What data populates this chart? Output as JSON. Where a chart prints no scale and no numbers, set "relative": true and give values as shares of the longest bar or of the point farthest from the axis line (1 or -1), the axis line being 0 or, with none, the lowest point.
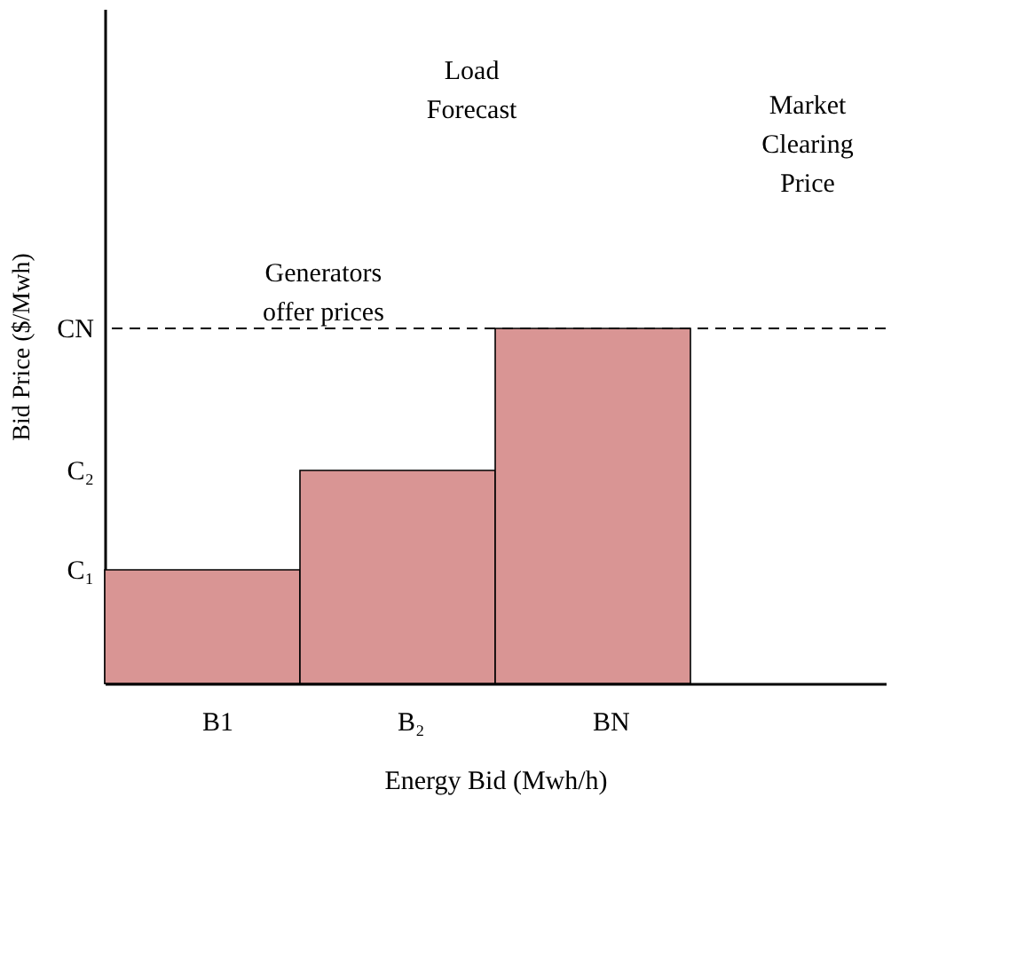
{
  "chart_data": {
    "type": "bar",
    "relative": true,
    "xlabel": "Energy Bid (Mwh/h)",
    "ylabel": "Bid Price ($/Mwh)",
    "categories": [
      "B1",
      "B₂",
      "BN"
    ],
    "values": [
      0.32,
      0.6,
      1
    ],
    "color": "#d99594",
    "ref_lines": [
      {
        "axis": "y",
        "value": 1,
        "label": "CN",
        "line_style": "dashed",
        "color": "#000000"
      }
    ],
    "annotations": [
      "C₁",
      "C₂",
      "Load Forecast",
      "Market Clearing Price",
      "Generators offer prices"
    ]
  }
}
